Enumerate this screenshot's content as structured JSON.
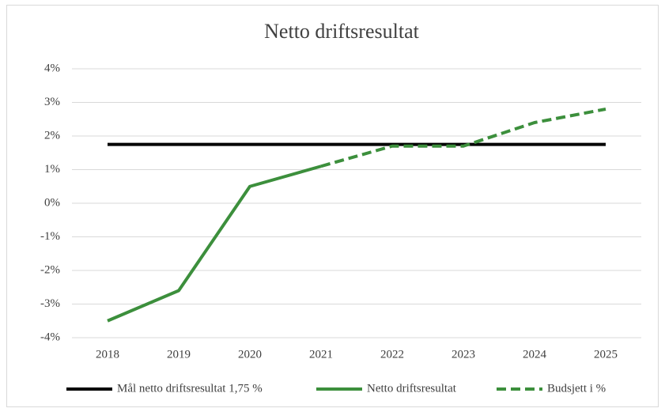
{
  "chart_data": {
    "type": "line",
    "title": "Netto driftsresultat",
    "categories": [
      "2018",
      "2019",
      "2020",
      "2021",
      "2022",
      "2023",
      "2024",
      "2025"
    ],
    "series": [
      {
        "name": "Mål netto driftsresultat 1,75 %",
        "color": "#000000",
        "dash": false,
        "values": [
          1.75,
          1.75,
          1.75,
          1.75,
          1.75,
          1.75,
          1.75,
          1.75
        ]
      },
      {
        "name": "Netto driftsresultat",
        "color": "#3c8f3c",
        "dash": false,
        "values": [
          -3.5,
          -2.6,
          0.5,
          1.1,
          null,
          null,
          null,
          null
        ]
      },
      {
        "name": "Budsjett i %",
        "color": "#3c8f3c",
        "dash": true,
        "values": [
          null,
          null,
          null,
          1.1,
          1.7,
          1.7,
          2.4,
          2.8
        ]
      }
    ],
    "ylim": [
      -4,
      4
    ],
    "yticks": [
      {
        "value": -4,
        "label": "-4%"
      },
      {
        "value": -3,
        "label": "-3%"
      },
      {
        "value": -2,
        "label": "-2%"
      },
      {
        "value": -1,
        "label": "-1%"
      },
      {
        "value": 0,
        "label": "0%"
      },
      {
        "value": 1,
        "label": "1%"
      },
      {
        "value": 2,
        "label": "2%"
      },
      {
        "value": 3,
        "label": "3%"
      },
      {
        "value": 4,
        "label": "4%"
      }
    ],
    "grid": true,
    "legend": "bottom"
  }
}
